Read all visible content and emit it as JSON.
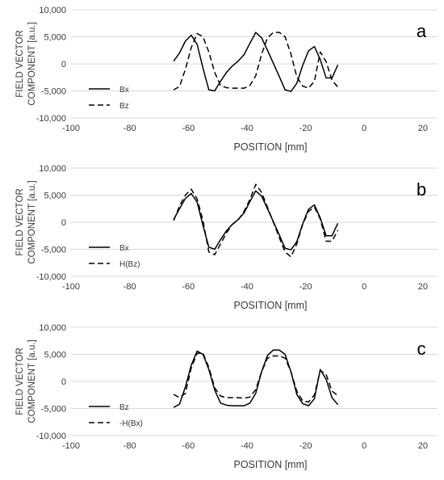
{
  "chart_data": [
    {
      "type": "line",
      "panel_label": "a",
      "ylabel_lines": [
        "FIELD VECTOR",
        "COMPONENT [a.u.]"
      ],
      "xlabel": "POSITION [mm]",
      "xlim": [
        -100,
        25
      ],
      "ylim": [
        -10000,
        10000
      ],
      "x_ticks": [
        -100,
        -80,
        -60,
        -40,
        -20,
        0,
        20
      ],
      "y_ticks": [
        10000,
        5000,
        0,
        -5000,
        -10000
      ],
      "x_tick_labels": [
        "-100",
        "-80",
        "-60",
        "-40",
        "-20",
        "0",
        "20"
      ],
      "y_tick_labels": [
        "10,000",
        "5,000",
        "0",
        "-5,000",
        "-10,000"
      ],
      "legend_position": "bottom-left",
      "series": [
        {
          "name": "Bx",
          "style": "solid",
          "x": [
            -65,
            -63,
            -61,
            -59,
            -57,
            -55,
            -53,
            -51,
            -49,
            -47,
            -45,
            -43,
            -41,
            -39,
            -37,
            -35,
            -33,
            -31,
            -29,
            -27,
            -25,
            -23,
            -21,
            -19,
            -17,
            -15,
            -13,
            -11,
            -9
          ],
          "y": [
            500,
            2000,
            4200,
            5300,
            3600,
            -800,
            -4800,
            -5000,
            -3200,
            -1600,
            -400,
            500,
            1700,
            3800,
            5800,
            4800,
            2500,
            100,
            -2300,
            -4800,
            -5100,
            -3600,
            -300,
            2400,
            3200,
            800,
            -2600,
            -2600,
            -200
          ]
        },
        {
          "name": "Bz",
          "style": "dashed",
          "x": [
            -65,
            -63,
            -61,
            -59,
            -57,
            -55,
            -53,
            -51,
            -49,
            -47,
            -45,
            -43,
            -41,
            -39,
            -37,
            -35,
            -33,
            -31,
            -29,
            -27,
            -25,
            -23,
            -21,
            -19,
            -17,
            -15,
            -13,
            -11,
            -9
          ],
          "y": [
            -4800,
            -4200,
            -1000,
            3000,
            5600,
            5000,
            2200,
            -1600,
            -4000,
            -4400,
            -4500,
            -4500,
            -4500,
            -4000,
            -2200,
            1800,
            4800,
            5800,
            5800,
            5000,
            1800,
            -2400,
            -4100,
            -4500,
            -3200,
            2200,
            400,
            -3000,
            -4300
          ]
        }
      ]
    },
    {
      "type": "line",
      "panel_label": "b",
      "ylabel_lines": [
        "FIELD VECTOR",
        "COMPONENT [a.u.]"
      ],
      "xlabel": "POSITION [mm]",
      "xlim": [
        -100,
        25
      ],
      "ylim": [
        -10000,
        10000
      ],
      "x_ticks": [
        -100,
        -80,
        -60,
        -40,
        -20,
        0,
        20
      ],
      "y_ticks": [
        10000,
        5000,
        0,
        -5000,
        -10000
      ],
      "x_tick_labels": [
        "-100",
        "-80",
        "-60",
        "-40",
        "-20",
        "0",
        "20"
      ],
      "y_tick_labels": [
        "10,000",
        "5,000",
        "0",
        "-5,000",
        "-10,000"
      ],
      "legend_position": "bottom-left",
      "series": [
        {
          "name": "Bx",
          "style": "solid",
          "x": [
            -65,
            -63,
            -61,
            -59,
            -57,
            -55,
            -53,
            -51,
            -49,
            -47,
            -45,
            -43,
            -41,
            -39,
            -37,
            -35,
            -33,
            -31,
            -29,
            -27,
            -25,
            -23,
            -21,
            -19,
            -17,
            -15,
            -13,
            -11,
            -9
          ],
          "y": [
            500,
            2500,
            4400,
            5300,
            3700,
            -600,
            -4600,
            -5000,
            -3200,
            -1600,
            -400,
            500,
            1700,
            3800,
            5800,
            4800,
            2500,
            100,
            -2300,
            -4800,
            -5100,
            -3600,
            -300,
            2400,
            3200,
            800,
            -2500,
            -2500,
            -200
          ]
        },
        {
          "name": "H(Bz)",
          "style": "dashed",
          "x": [
            -65,
            -63,
            -61,
            -59,
            -57,
            -55,
            -53,
            -51,
            -49,
            -47,
            -45,
            -43,
            -41,
            -39,
            -37,
            -35,
            -33,
            -31,
            -29,
            -27,
            -25,
            -23,
            -21,
            -19,
            -17,
            -15,
            -13,
            -11,
            -9
          ],
          "y": [
            300,
            3000,
            5000,
            6100,
            4300,
            300,
            -5500,
            -6000,
            -4000,
            -2000,
            -400,
            400,
            2000,
            4200,
            7000,
            5500,
            2800,
            0,
            -2800,
            -5500,
            -6400,
            -4000,
            -400,
            2000,
            2800,
            600,
            -3500,
            -3500,
            -1500
          ]
        }
      ]
    },
    {
      "type": "line",
      "panel_label": "c",
      "ylabel_lines": [
        "FIELD VECTOR",
        "COMPONENT [a.u.]"
      ],
      "xlabel": "POSITION [mm]",
      "xlim": [
        -100,
        25
      ],
      "ylim": [
        -10000,
        10000
      ],
      "x_ticks": [
        -100,
        -80,
        -60,
        -40,
        -20,
        0,
        20
      ],
      "y_ticks": [
        10000,
        5000,
        0,
        -5000,
        -10000
      ],
      "x_tick_labels": [
        "-100",
        "-80",
        "-60",
        "-40",
        "-20",
        "0",
        "20"
      ],
      "y_tick_labels": [
        "10,000",
        "5,000",
        "0",
        "-5,000",
        "-10,000"
      ],
      "legend_position": "bottom-left",
      "series": [
        {
          "name": "Bz",
          "style": "solid",
          "x": [
            -65,
            -63,
            -61,
            -59,
            -57,
            -55,
            -53,
            -51,
            -49,
            -47,
            -45,
            -43,
            -41,
            -39,
            -37,
            -35,
            -33,
            -31,
            -29,
            -27,
            -25,
            -23,
            -21,
            -19,
            -17,
            -15,
            -13,
            -11,
            -9
          ],
          "y": [
            -4800,
            -4200,
            -1000,
            3000,
            5600,
            5000,
            2200,
            -1600,
            -4000,
            -4400,
            -4500,
            -4500,
            -4500,
            -4000,
            -2200,
            1800,
            4800,
            5800,
            5800,
            5000,
            1800,
            -2400,
            -4100,
            -4500,
            -3200,
            2200,
            400,
            -3000,
            -4300
          ]
        },
        {
          "name": "-H(Bx)",
          "style": "dashed",
          "x": [
            -65,
            -63,
            -61,
            -59,
            -57,
            -55,
            -53,
            -51,
            -49,
            -47,
            -45,
            -43,
            -41,
            -39,
            -37,
            -35,
            -33,
            -31,
            -29,
            -27,
            -25,
            -23,
            -21,
            -19,
            -17,
            -15,
            -13,
            -11,
            -9
          ],
          "y": [
            -2400,
            -3000,
            -2200,
            2500,
            5200,
            5200,
            2600,
            -1200,
            -2700,
            -3000,
            -3000,
            -3000,
            -3100,
            -2900,
            -1500,
            1800,
            4300,
            4700,
            4700,
            4300,
            1800,
            -1800,
            -3600,
            -3800,
            -2500,
            2000,
            1300,
            -1800,
            -2600
          ]
        }
      ]
    }
  ]
}
